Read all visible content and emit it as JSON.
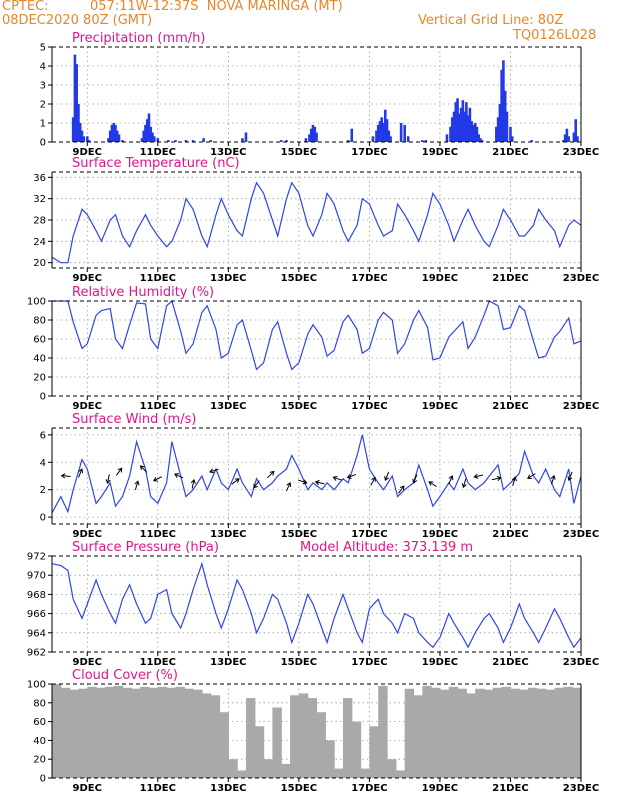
{
  "header": {
    "source": "CPTEC:",
    "location": "057:11W-12:37S  NOVA MARINGA (MT)",
    "init": "08DEC2020 80Z (GMT)",
    "grid_line": "Vertical Grid Line: 80Z",
    "code": "TQ0126L028"
  },
  "x_axis": {
    "start_day": 8.0,
    "end_day": 23.0,
    "tick_days": [
      9,
      11,
      13,
      15,
      17,
      19,
      21,
      23
    ],
    "tick_labels": [
      "9DEC",
      "11DEC",
      "13DEC",
      "15DEC",
      "17DEC",
      "19DEC",
      "21DEC",
      "23DEC"
    ]
  },
  "colors": {
    "series": "#2d46e8",
    "bars": "#2339e6",
    "cloud": "#a9a9a9",
    "title": "#e0148c",
    "header": "#e8862a"
  },
  "chart_data": [
    {
      "id": "precip",
      "type": "bar",
      "title": "Precipitation (mm/h)",
      "ylim": [
        0,
        5
      ],
      "yticks": [
        0,
        1,
        2,
        3,
        4,
        5
      ],
      "x": [
        8.6,
        8.65,
        8.7,
        8.75,
        8.8,
        8.85,
        8.9,
        9.0,
        9.05,
        9.6,
        9.65,
        9.7,
        9.75,
        9.8,
        9.85,
        9.9,
        10.0,
        10.55,
        10.6,
        10.65,
        10.7,
        10.75,
        10.8,
        10.85,
        10.9,
        11.0,
        11.3,
        11.5,
        11.8,
        12.0,
        12.3,
        12.5,
        13.4,
        13.5,
        14.5,
        14.65,
        15.2,
        15.3,
        15.35,
        15.4,
        15.45,
        15.5,
        16.4,
        16.5,
        17.1,
        17.2,
        17.25,
        17.3,
        17.35,
        17.4,
        17.45,
        17.5,
        17.55,
        17.6,
        17.9,
        18.0,
        18.1,
        18.5,
        18.6,
        19.2,
        19.3,
        19.35,
        19.4,
        19.45,
        19.5,
        19.55,
        19.6,
        19.65,
        19.7,
        19.75,
        19.8,
        19.85,
        19.9,
        19.95,
        20.0,
        20.05,
        20.1,
        20.15,
        20.2,
        20.6,
        20.65,
        20.7,
        20.75,
        20.8,
        20.85,
        20.9,
        21.0,
        21.05,
        21.6,
        22.5,
        22.55,
        22.6,
        22.65,
        22.8,
        22.85,
        22.9
      ],
      "values": [
        1.3,
        4.6,
        4.1,
        2.0,
        1.0,
        0.6,
        0.3,
        0.3,
        0.1,
        0.2,
        0.6,
        0.9,
        1.0,
        0.9,
        0.6,
        0.4,
        0.1,
        0.2,
        0.6,
        0.9,
        1.2,
        1.5,
        0.8,
        0.5,
        0.3,
        0.2,
        0.1,
        0.1,
        0.1,
        0.1,
        0.2,
        0.1,
        0.2,
        0.5,
        0.1,
        0.1,
        0.2,
        0.4,
        0.7,
        0.9,
        0.8,
        0.5,
        0.1,
        0.7,
        0.3,
        0.6,
        0.9,
        1.1,
        1.3,
        1.0,
        1.7,
        1.2,
        0.6,
        0.3,
        1.0,
        0.9,
        0.3,
        0.1,
        0.1,
        0.4,
        0.8,
        1.3,
        1.6,
        2.1,
        2.3,
        1.5,
        1.8,
        2.2,
        1.6,
        2.1,
        1.4,
        1.8,
        1.1,
        0.9,
        1.0,
        0.8,
        0.4,
        0.2,
        0.1,
        0.8,
        1.3,
        2.0,
        3.8,
        4.3,
        2.7,
        1.6,
        0.8,
        0.3,
        0.1,
        0.1,
        0.4,
        0.7,
        0.3,
        0.5,
        1.2,
        0.3
      ]
    },
    {
      "id": "temp",
      "type": "line",
      "title": "Surface Temperature (nC)",
      "ylim": [
        19,
        37
      ],
      "yticks": [
        20,
        24,
        28,
        32,
        36
      ],
      "x": [
        8.0,
        8.25,
        8.45,
        8.6,
        8.85,
        9.0,
        9.25,
        9.4,
        9.65,
        9.8,
        10.0,
        10.2,
        10.4,
        10.65,
        10.8,
        11.0,
        11.25,
        11.4,
        11.65,
        11.8,
        12.0,
        12.25,
        12.4,
        12.65,
        12.8,
        13.0,
        13.25,
        13.4,
        13.65,
        13.8,
        14.0,
        14.25,
        14.4,
        14.65,
        14.8,
        15.0,
        15.25,
        15.4,
        15.65,
        15.8,
        16.0,
        16.25,
        16.4,
        16.65,
        16.8,
        17.0,
        17.25,
        17.4,
        17.65,
        17.8,
        18.0,
        18.25,
        18.4,
        18.65,
        18.8,
        19.0,
        19.25,
        19.4,
        19.65,
        19.8,
        20.0,
        20.25,
        20.4,
        20.65,
        20.8,
        21.0,
        21.25,
        21.4,
        21.65,
        21.8,
        22.0,
        22.25,
        22.4,
        22.65,
        22.8,
        23.0
      ],
      "values": [
        21,
        20,
        20,
        25,
        30,
        29,
        26,
        24,
        28,
        29,
        25,
        23,
        26,
        29,
        27,
        25,
        23,
        24,
        28,
        32,
        30,
        25,
        23,
        29,
        32,
        29,
        26,
        25,
        32,
        35,
        33,
        28,
        25,
        32,
        35,
        33,
        27,
        25,
        29,
        33,
        31,
        26,
        24,
        27,
        32,
        31,
        27,
        25,
        26,
        31,
        29,
        26,
        24,
        29,
        33,
        31,
        27,
        24,
        28,
        30,
        27,
        24,
        23,
        27,
        30,
        28,
        25,
        25,
        27,
        30,
        28,
        26,
        23,
        27,
        28,
        27
      ]
    },
    {
      "id": "rh",
      "type": "line",
      "title": "Relative Humidity (%)",
      "ylim": [
        0,
        100
      ],
      "yticks": [
        0,
        20,
        40,
        60,
        80,
        100
      ],
      "x": [
        8.0,
        8.25,
        8.45,
        8.6,
        8.85,
        9.0,
        9.25,
        9.4,
        9.65,
        9.8,
        10.0,
        10.2,
        10.4,
        10.65,
        10.8,
        11.0,
        11.25,
        11.4,
        11.65,
        11.8,
        12.0,
        12.25,
        12.4,
        12.65,
        12.8,
        13.0,
        13.25,
        13.4,
        13.65,
        13.8,
        14.0,
        14.25,
        14.4,
        14.65,
        14.8,
        15.0,
        15.25,
        15.4,
        15.65,
        15.8,
        16.0,
        16.25,
        16.4,
        16.65,
        16.8,
        17.0,
        17.25,
        17.4,
        17.65,
        17.8,
        18.0,
        18.25,
        18.4,
        18.65,
        18.8,
        19.0,
        19.25,
        19.4,
        19.65,
        19.8,
        20.0,
        20.25,
        20.4,
        20.65,
        20.8,
        21.0,
        21.25,
        21.4,
        21.65,
        21.8,
        22.0,
        22.25,
        22.4,
        22.65,
        22.8,
        23.0
      ],
      "values": [
        100,
        100,
        100,
        78,
        50,
        55,
        85,
        90,
        92,
        60,
        50,
        75,
        98,
        97,
        60,
        50,
        95,
        100,
        68,
        45,
        55,
        88,
        95,
        70,
        40,
        45,
        75,
        80,
        48,
        28,
        35,
        70,
        78,
        45,
        28,
        35,
        65,
        75,
        62,
        42,
        48,
        78,
        85,
        70,
        45,
        50,
        80,
        88,
        80,
        45,
        55,
        80,
        90,
        72,
        38,
        40,
        62,
        68,
        78,
        50,
        62,
        85,
        100,
        95,
        70,
        72,
        95,
        90,
        58,
        40,
        42,
        62,
        68,
        82,
        55,
        58
      ]
    },
    {
      "id": "wind",
      "type": "line",
      "title": "Surface Wind (m/s)",
      "ylim": [
        -0.5,
        6.5
      ],
      "yticks": [
        0,
        2,
        4,
        6
      ],
      "x": [
        8.0,
        8.25,
        8.45,
        8.6,
        8.85,
        9.0,
        9.25,
        9.4,
        9.65,
        9.8,
        10.0,
        10.2,
        10.4,
        10.65,
        10.8,
        11.0,
        11.25,
        11.4,
        11.65,
        11.8,
        12.0,
        12.25,
        12.4,
        12.65,
        12.8,
        13.0,
        13.25,
        13.4,
        13.65,
        13.8,
        14.0,
        14.25,
        14.4,
        14.65,
        14.8,
        15.0,
        15.25,
        15.4,
        15.65,
        15.8,
        16.0,
        16.25,
        16.4,
        16.65,
        16.8,
        17.0,
        17.25,
        17.4,
        17.65,
        17.8,
        18.0,
        18.25,
        18.4,
        18.65,
        18.8,
        19.0,
        19.25,
        19.4,
        19.65,
        19.8,
        20.0,
        20.25,
        20.4,
        20.65,
        20.8,
        21.0,
        21.25,
        21.4,
        21.65,
        21.8,
        22.0,
        22.25,
        22.4,
        22.65,
        22.8,
        23.0
      ],
      "values": [
        0.3,
        1.5,
        0.4,
        2.0,
        4.2,
        3.5,
        1.0,
        1.5,
        2.5,
        0.8,
        1.5,
        3.0,
        5.5,
        3.5,
        1.5,
        1.0,
        2.5,
        5.5,
        3.0,
        1.5,
        2.0,
        3.0,
        2.0,
        3.5,
        2.5,
        2.0,
        3.5,
        2.5,
        1.5,
        2.8,
        2.0,
        2.5,
        3.0,
        3.5,
        4.5,
        3.5,
        2.0,
        2.5,
        2.0,
        2.5,
        2.0,
        2.8,
        2.5,
        4.5,
        6.0,
        3.5,
        2.5,
        2.0,
        3.0,
        1.5,
        2.0,
        2.5,
        3.8,
        2.0,
        0.8,
        1.5,
        2.5,
        2.0,
        3.5,
        2.5,
        2.0,
        2.5,
        3.0,
        3.8,
        2.0,
        2.5,
        3.2,
        4.8,
        3.0,
        2.5,
        3.5,
        2.0,
        1.5,
        3.5,
        1.0,
        3.0
      ],
      "arrows": [
        {
          "x": 8.4,
          "y": 3.0,
          "dx": -1,
          "dy": 0.1
        },
        {
          "x": 8.8,
          "y": 3.2,
          "dx": 0.4,
          "dy": 1
        },
        {
          "x": 9.6,
          "y": 2.8,
          "dx": -0.2,
          "dy": -1
        },
        {
          "x": 9.9,
          "y": 3.3,
          "dx": 0.6,
          "dy": 0.8
        },
        {
          "x": 10.4,
          "y": 2.3,
          "dx": 0.3,
          "dy": 1
        },
        {
          "x": 10.6,
          "y": 3.5,
          "dx": -0.7,
          "dy": 0.7
        },
        {
          "x": 11.0,
          "y": 2.8,
          "dx": -0.8,
          "dy": -0.4
        },
        {
          "x": 11.6,
          "y": 3.0,
          "dx": -0.9,
          "dy": 0.4
        },
        {
          "x": 12.0,
          "y": 2.4,
          "dx": 0.2,
          "dy": 1
        },
        {
          "x": 12.6,
          "y": 3.4,
          "dx": -0.9,
          "dy": -0.3
        },
        {
          "x": 13.2,
          "y": 2.6,
          "dx": 0.8,
          "dy": 0.6
        },
        {
          "x": 13.8,
          "y": 2.4,
          "dx": -0.6,
          "dy": -0.8
        },
        {
          "x": 14.2,
          "y": 3.1,
          "dx": 0.7,
          "dy": 0.7
        },
        {
          "x": 14.7,
          "y": 2.2,
          "dx": 0.4,
          "dy": 0.9
        },
        {
          "x": 15.1,
          "y": 2.6,
          "dx": 0.9,
          "dy": -0.3
        },
        {
          "x": 15.6,
          "y": 2.5,
          "dx": -0.9,
          "dy": 0.2
        },
        {
          "x": 16.1,
          "y": 2.8,
          "dx": -0.9,
          "dy": 0.3
        },
        {
          "x": 16.5,
          "y": 3.0,
          "dx": -0.8,
          "dy": -0.3
        },
        {
          "x": 17.1,
          "y": 2.6,
          "dx": 0.5,
          "dy": 0.9
        },
        {
          "x": 17.5,
          "y": 3.0,
          "dx": -0.4,
          "dy": -1
        },
        {
          "x": 17.9,
          "y": 2.0,
          "dx": 0.6,
          "dy": 0.8
        },
        {
          "x": 18.3,
          "y": 2.8,
          "dx": -0.4,
          "dy": -1
        },
        {
          "x": 18.8,
          "y": 2.4,
          "dx": -0.8,
          "dy": 0.5
        },
        {
          "x": 19.3,
          "y": 2.7,
          "dx": 0.4,
          "dy": 0.9
        },
        {
          "x": 19.7,
          "y": 2.5,
          "dx": -0.3,
          "dy": -1
        },
        {
          "x": 20.1,
          "y": 3.0,
          "dx": -0.9,
          "dy": -0.2
        },
        {
          "x": 20.6,
          "y": 2.8,
          "dx": 0.9,
          "dy": 0.2
        },
        {
          "x": 21.1,
          "y": 2.6,
          "dx": 0.3,
          "dy": 1
        },
        {
          "x": 21.6,
          "y": 3.0,
          "dx": -0.8,
          "dy": -0.5
        },
        {
          "x": 22.2,
          "y": 2.7,
          "dx": 0.3,
          "dy": 1
        },
        {
          "x": 22.7,
          "y": 3.0,
          "dx": -0.4,
          "dy": -1
        }
      ]
    },
    {
      "id": "pres",
      "type": "line",
      "title": "Surface Pressure (hPa)",
      "annotation": "Model Altitude: 373.139 m",
      "ylim": [
        962,
        972
      ],
      "yticks": [
        962,
        964,
        966,
        968,
        970,
        972
      ],
      "x": [
        8.0,
        8.25,
        8.45,
        8.6,
        8.85,
        9.0,
        9.25,
        9.4,
        9.65,
        9.8,
        10.0,
        10.2,
        10.4,
        10.65,
        10.8,
        11.0,
        11.25,
        11.4,
        11.65,
        11.8,
        12.0,
        12.25,
        12.4,
        12.65,
        12.8,
        13.0,
        13.25,
        13.4,
        13.65,
        13.8,
        14.0,
        14.25,
        14.4,
        14.65,
        14.8,
        15.0,
        15.25,
        15.4,
        15.65,
        15.8,
        16.0,
        16.25,
        16.4,
        16.65,
        16.8,
        17.0,
        17.25,
        17.4,
        17.65,
        17.8,
        18.0,
        18.25,
        18.4,
        18.65,
        18.8,
        19.0,
        19.25,
        19.4,
        19.65,
        19.8,
        20.0,
        20.25,
        20.4,
        20.65,
        20.8,
        21.0,
        21.25,
        21.4,
        21.65,
        21.8,
        22.0,
        22.25,
        22.4,
        22.65,
        22.8,
        23.0
      ],
      "values": [
        971.2,
        971.0,
        970.5,
        967.5,
        965.5,
        967.0,
        969.5,
        968.0,
        966.0,
        965.0,
        967.5,
        969.0,
        967.0,
        965.0,
        965.5,
        968.0,
        968.5,
        966.0,
        964.5,
        966.0,
        968.5,
        971.2,
        969.0,
        966.0,
        964.5,
        966.5,
        969.5,
        968.5,
        966.0,
        964.0,
        965.5,
        968.0,
        967.5,
        965.0,
        963.0,
        965.0,
        968.0,
        967.0,
        964.5,
        963.0,
        965.5,
        968.0,
        966.5,
        964.0,
        963.0,
        966.5,
        967.5,
        966.0,
        965.0,
        964.0,
        966.0,
        965.5,
        964.0,
        963.0,
        962.5,
        963.5,
        966.0,
        965.0,
        963.5,
        962.5,
        964.0,
        965.5,
        966.0,
        964.5,
        963.0,
        964.5,
        967.0,
        965.5,
        964.0,
        963.0,
        964.5,
        966.5,
        965.5,
        963.5,
        962.5,
        963.5
      ]
    },
    {
      "id": "cloud",
      "type": "bar",
      "title": "Cloud Cover (%)",
      "ylim": [
        0,
        100
      ],
      "yticks": [
        0,
        20,
        40,
        60,
        80,
        100
      ],
      "x": [
        8.0,
        8.25,
        8.5,
        8.75,
        9.0,
        9.25,
        9.5,
        9.75,
        10.0,
        10.25,
        10.5,
        10.75,
        11.0,
        11.25,
        11.5,
        11.75,
        12.0,
        12.25,
        12.5,
        12.75,
        13.0,
        13.25,
        13.5,
        13.75,
        14.0,
        14.25,
        14.5,
        14.75,
        15.0,
        15.25,
        15.5,
        15.75,
        16.0,
        16.25,
        16.5,
        16.75,
        17.0,
        17.25,
        17.5,
        17.75,
        18.0,
        18.25,
        18.5,
        18.75,
        19.0,
        19.25,
        19.5,
        19.75,
        20.0,
        20.25,
        20.5,
        20.75,
        21.0,
        21.25,
        21.5,
        21.75,
        22.0,
        22.25,
        22.5,
        22.75,
        23.0
      ],
      "values": [
        100,
        96,
        94,
        95,
        97,
        96,
        97,
        98,
        96,
        95,
        97,
        96,
        97,
        96,
        97,
        95,
        94,
        90,
        88,
        70,
        20,
        8,
        85,
        55,
        20,
        75,
        15,
        88,
        90,
        85,
        70,
        40,
        10,
        85,
        60,
        10,
        55,
        98,
        20,
        8,
        95,
        88,
        98,
        96,
        94,
        97,
        95,
        90,
        95,
        94,
        96,
        97,
        95,
        94,
        96,
        95,
        94,
        96,
        97,
        96,
        96
      ]
    }
  ]
}
